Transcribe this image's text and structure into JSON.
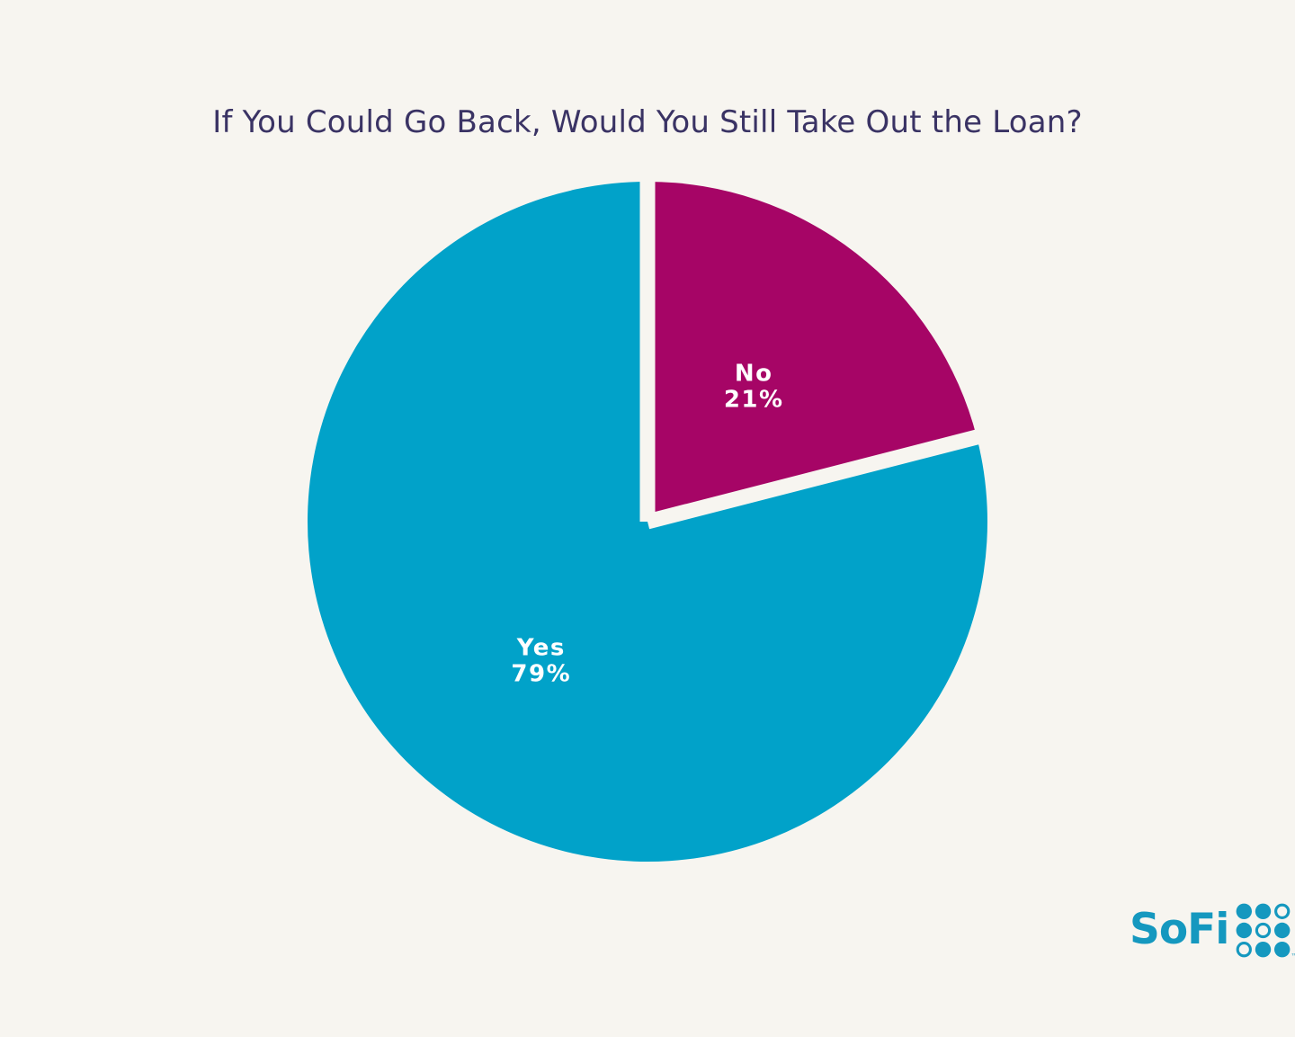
{
  "page": {
    "background_color": "#F7F5F0"
  },
  "title": {
    "text": "If You Could Go Back, Would You Still Take Out the Loan?",
    "color": "#3A3364"
  },
  "chart_data": {
    "type": "pie",
    "title": "If You Could Go Back, Would You Still Take Out the Loan?",
    "direction": "clockwise",
    "start_angle": "12-o-clock",
    "legend": "none",
    "separator_color": "#F7F5F0",
    "label_color": "#FFFFFF",
    "slices": [
      {
        "label": "No",
        "value": 21,
        "pct_label": "21%",
        "color": "#A60566"
      },
      {
        "label": "Yes",
        "value": 79,
        "pct_label": "79%",
        "color": "#01A2C9"
      }
    ]
  },
  "logo": {
    "text": "SoFi",
    "trademark": "™",
    "color": "#1598BF",
    "dot_pattern": [
      [
        1,
        1,
        0
      ],
      [
        1,
        0,
        1
      ],
      [
        0,
        1,
        1
      ]
    ]
  }
}
